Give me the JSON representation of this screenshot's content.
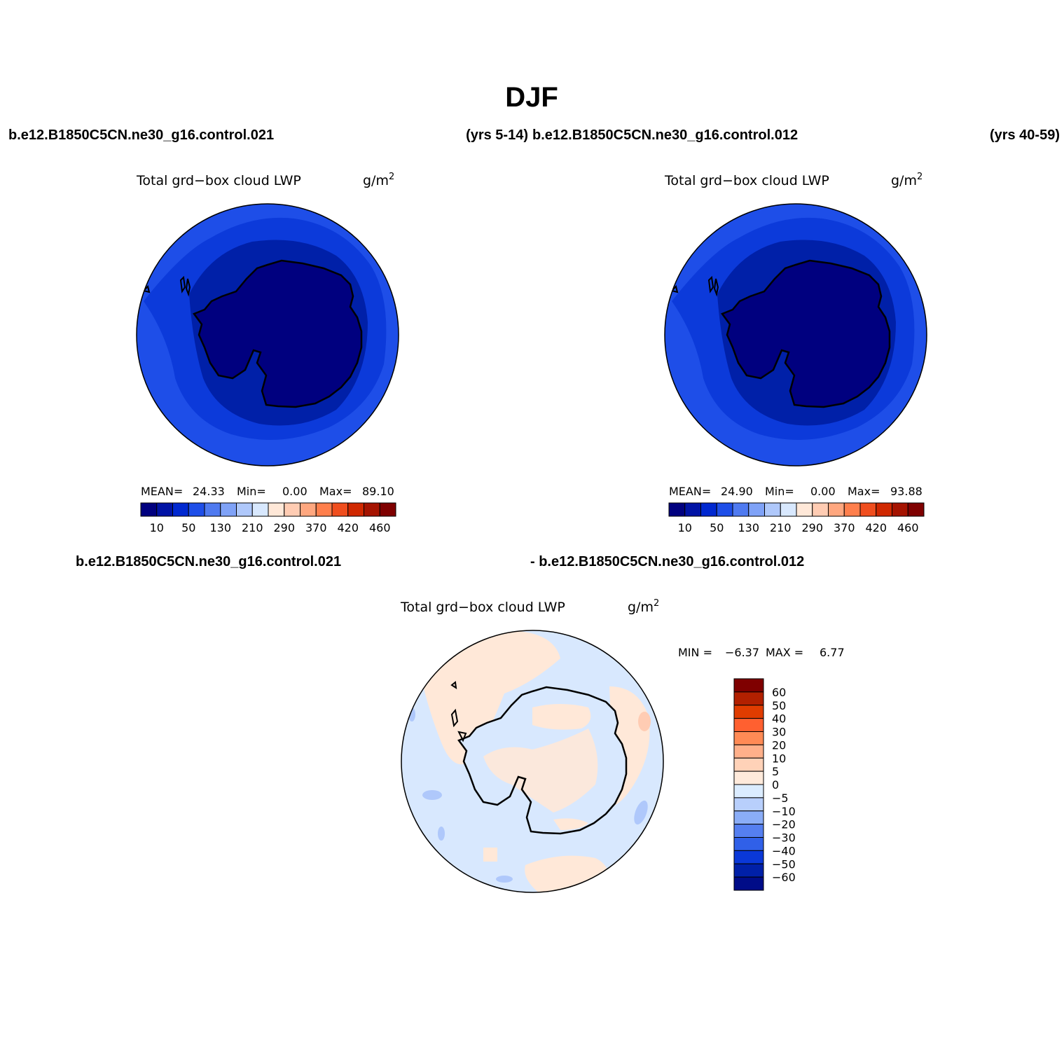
{
  "title": "DJF",
  "header_left_case": "b.e12.B1850C5CN.ne30_g16.control.021",
  "header_left_years": "(yrs 5-14)",
  "header_right_case": "b.e12.B1850C5CN.ne30_g16.control.012",
  "header_right_years": "(yrs 40-59)",
  "diff_case_a": "b.e12.B1850C5CN.ne30_g16.control.021",
  "diff_case_b": "- b.e12.B1850C5CN.ne30_g16.control.012",
  "panels": [
    {
      "variable": "Total grd−box cloud LWP",
      "units": "g/m",
      "units_sup": "2",
      "stats": {
        "mean_label": "MEAN=",
        "mean": "24.33",
        "min_label": "Min=",
        "min": "0.00",
        "max_label": "Max=",
        "max": "89.10"
      }
    },
    {
      "variable": "Total grd−box cloud LWP",
      "units": "g/m",
      "units_sup": "2",
      "stats": {
        "mean_label": "MEAN=",
        "mean": "24.90",
        "min_label": "Min=",
        "min": "0.00",
        "max_label": "Max=",
        "max": "93.88"
      }
    },
    {
      "variable": "Total grd−box cloud LWP",
      "units": "g/m",
      "units_sup": "2",
      "stats": {
        "min_label": "MIN =",
        "min": "−6.37",
        "max_label": "MAX =",
        "max": "6.77"
      }
    }
  ],
  "colorbar_main": {
    "colors": [
      "#00007f",
      "#0013a5",
      "#0028d0",
      "#1e4ee8",
      "#4f7af0",
      "#7fa2f7",
      "#afc8fb",
      "#d8e8fe",
      "#ffe8d8",
      "#ffccb3",
      "#ffa77f",
      "#ff7f4c",
      "#f04e1e",
      "#d02800",
      "#a51300",
      "#7f0000"
    ],
    "tick_labels": [
      "10",
      "50",
      "130",
      "210",
      "290",
      "370",
      "420",
      "460"
    ]
  },
  "colorbar_diff": {
    "colors_top_to_bottom": [
      "#7f0000",
      "#b22000",
      "#e03c00",
      "#ff6030",
      "#ff8a55",
      "#ffb08a",
      "#ffd2b8",
      "#ffeadb",
      "#dbecff",
      "#b8cffc",
      "#8aadf7",
      "#557ff0",
      "#3060e8",
      "#0a38d8",
      "#0020a8",
      "#000c88"
    ],
    "tick_labels_top_to_bottom": [
      "60",
      "50",
      "40",
      "30",
      "20",
      "10",
      "5",
      "0",
      "−5",
      "−10",
      "−20",
      "−30",
      "−40",
      "−50",
      "−60"
    ]
  },
  "map_colors": {
    "outer": "#1e4ee8",
    "ring2": "#0a38d8",
    "ring3": "#0020a8",
    "antarctica": "#00007f",
    "diff_background": "#d8e8fe",
    "diff_positive": "#ffe8d8",
    "diff_strong_positive": "#ffccb3",
    "diff_negative": "#afc8fb",
    "coastline": "#000000"
  }
}
